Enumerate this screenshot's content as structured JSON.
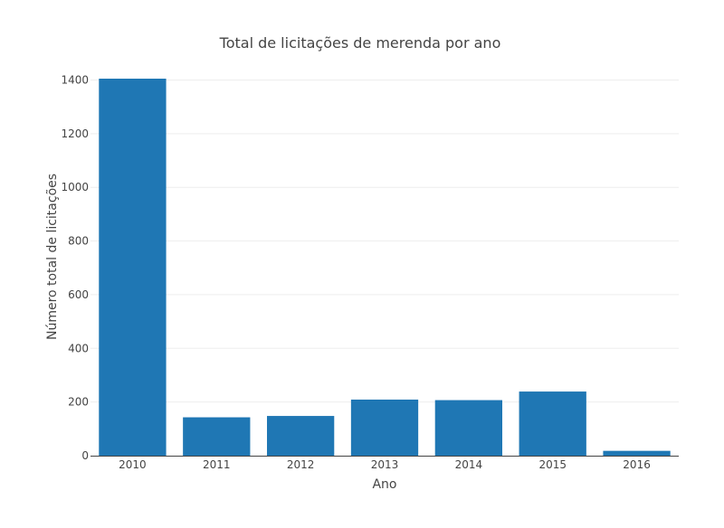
{
  "chart_data": {
    "type": "bar",
    "title": "Total de licitações de merenda por ano",
    "xlabel": "Ano",
    "ylabel": "Número total de licitações",
    "categories": [
      "2010",
      "2011",
      "2012",
      "2013",
      "2014",
      "2015",
      "2016"
    ],
    "values": [
      1405,
      143,
      148,
      209,
      207,
      239,
      18
    ],
    "ylim": [
      0,
      1405
    ],
    "yticks": [
      0,
      200,
      400,
      600,
      800,
      1000,
      1200,
      1400
    ],
    "grid": true,
    "bar_color": "#1f77b4"
  }
}
